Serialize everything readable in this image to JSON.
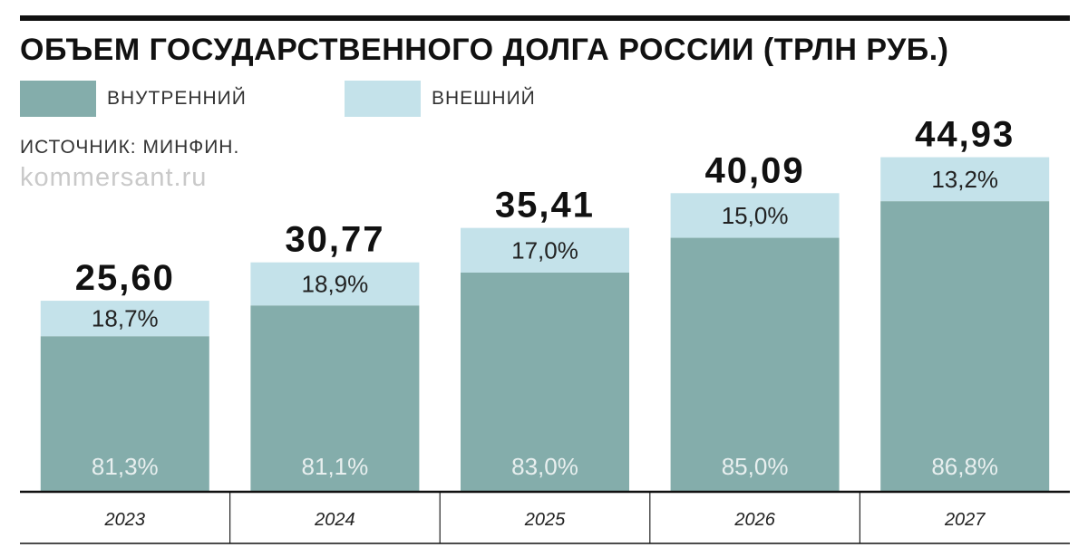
{
  "chart_data": {
    "type": "bar",
    "stacked": true,
    "title": "ОБЪЕМ ГОСУДАРСТВЕННОГО ДОЛГА РОССИИ (ТРЛН РУБ.)",
    "source": "ИСТОЧНИК: МИНФИН.",
    "watermark": "kommersant.ru",
    "categories": [
      "2023",
      "2024",
      "2025",
      "2026",
      "2027"
    ],
    "totals": [
      25.6,
      30.77,
      35.41,
      40.09,
      44.93
    ],
    "total_labels": [
      "25,60",
      "30,77",
      "35,41",
      "40,09",
      "44,93"
    ],
    "series": [
      {
        "name": "ВНУТРЕННИЙ",
        "color": "#84adab",
        "shares": [
          81.3,
          81.1,
          83.0,
          85.0,
          86.8
        ],
        "labels": [
          "81,3%",
          "81,1%",
          "83,0%",
          "85,0%",
          "86,8%"
        ]
      },
      {
        "name": "ВНЕШНИЙ",
        "color": "#c4e2ea",
        "shares": [
          18.7,
          18.9,
          17.0,
          15.0,
          13.2
        ],
        "labels": [
          "18,7%",
          "18,9%",
          "17,0%",
          "15,0%",
          "13,2%"
        ]
      }
    ],
    "ylim": [
      0,
      50
    ],
    "grid": false,
    "legend_position": "top-left"
  }
}
